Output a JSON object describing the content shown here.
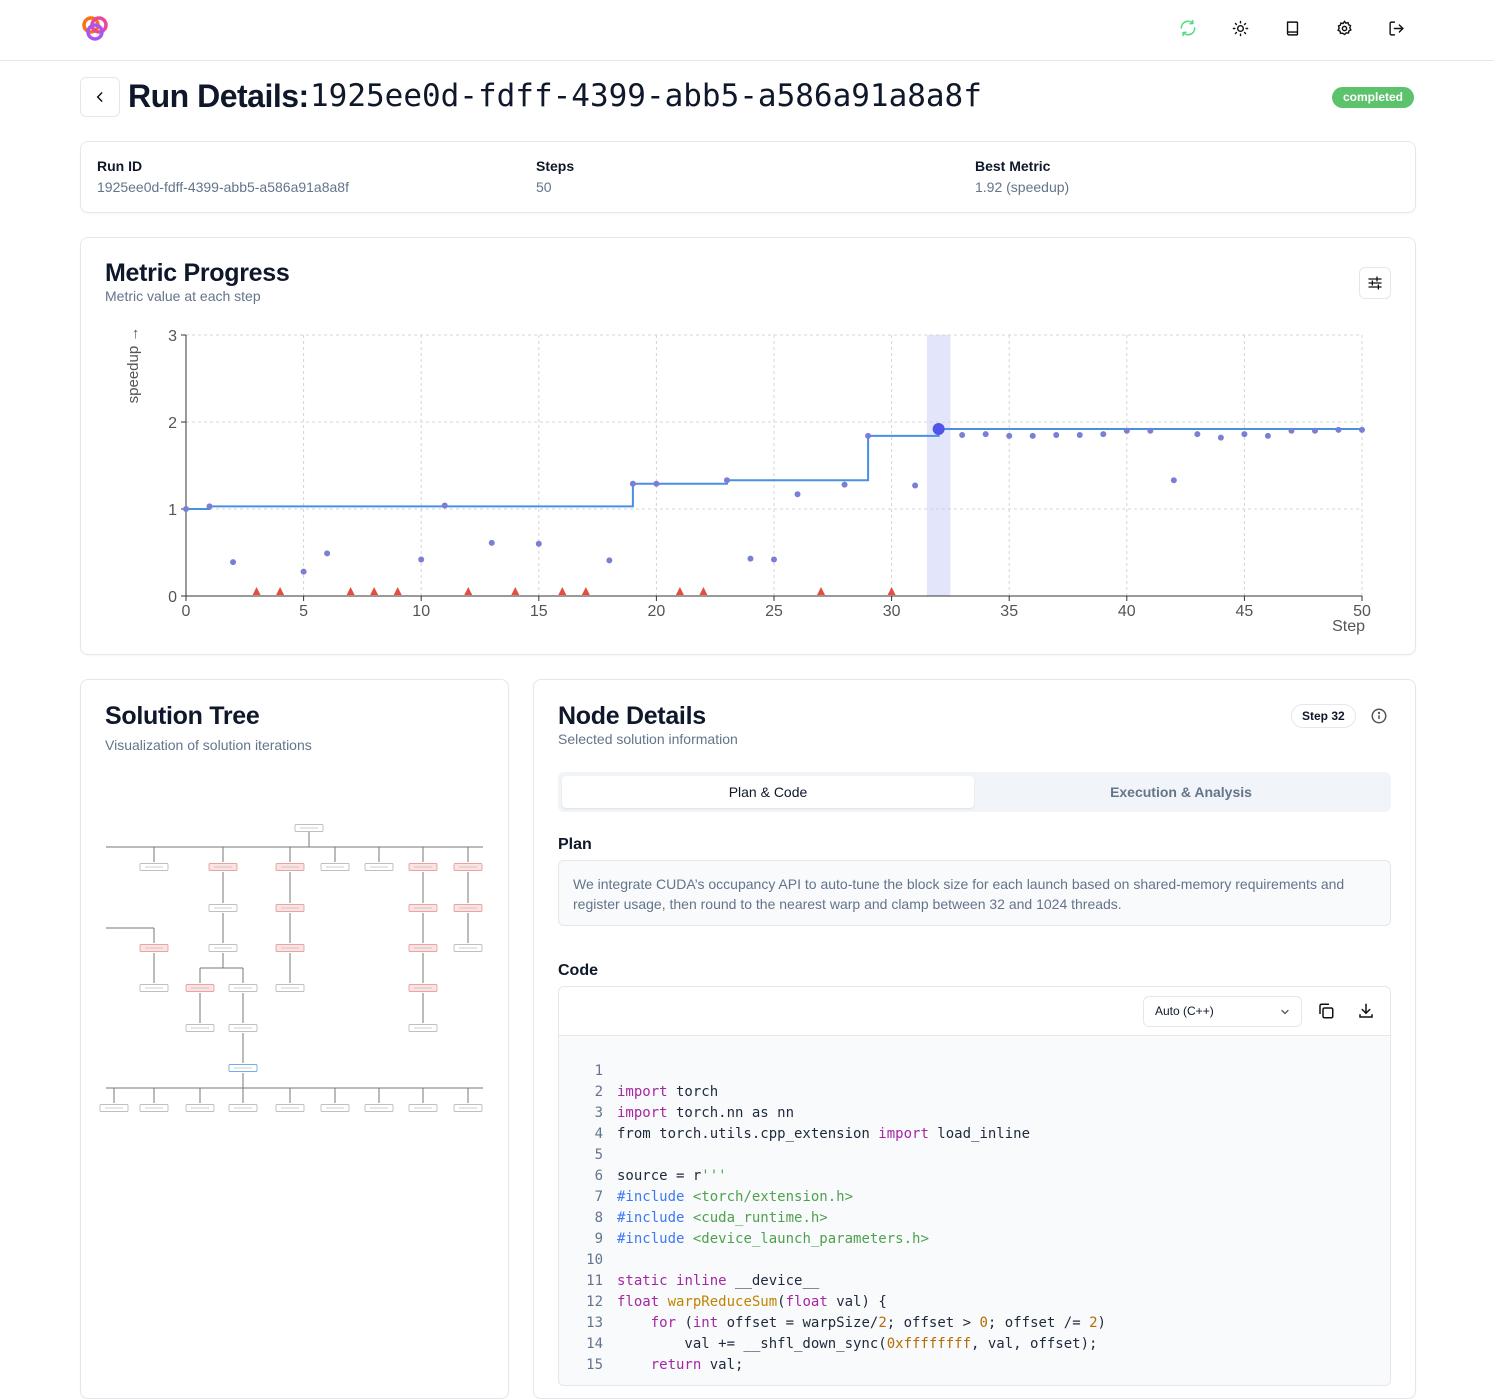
{
  "header": {
    "icons": [
      "logo",
      "refresh-icon",
      "sun-icon",
      "book-icon",
      "gear-icon",
      "logout-icon"
    ],
    "refresh_color": "#4ade80"
  },
  "page": {
    "title": "Run Details:",
    "run_id_title": "1925ee0d-fdff-4399-abb5-a586a91a8a8f",
    "status": "completed",
    "status_color": "#5cc26b"
  },
  "info": {
    "run_id_label": "Run ID",
    "run_id_value": "1925ee0d-fdff-4399-abb5-a586a91a8a8f",
    "steps_label": "Steps",
    "steps_value": "50",
    "best_label": "Best Metric",
    "best_value": "1.92 (speedup)"
  },
  "metric": {
    "title": "Metric Progress",
    "subtitle": "Metric value at each step"
  },
  "chart_data": {
    "type": "scatter",
    "xlabel": "Step",
    "ylabel": "speedup →",
    "xlim": [
      0,
      50
    ],
    "ylim": [
      0,
      3
    ],
    "x_ticks": [
      0,
      5,
      10,
      15,
      20,
      25,
      30,
      35,
      40,
      45,
      50
    ],
    "y_ticks": [
      0,
      1,
      2,
      3
    ],
    "grid": true,
    "selected_step": 32,
    "points": [
      [
        0,
        1.0
      ],
      [
        1,
        1.03
      ],
      [
        2,
        0.39
      ],
      [
        5,
        0.28
      ],
      [
        6,
        0.49
      ],
      [
        10,
        0.42
      ],
      [
        11,
        1.04
      ],
      [
        13,
        0.61
      ],
      [
        15,
        0.6
      ],
      [
        18,
        0.41
      ],
      [
        19,
        1.29
      ],
      [
        20,
        1.29
      ],
      [
        23,
        1.33
      ],
      [
        24,
        0.43
      ],
      [
        25,
        0.42
      ],
      [
        26,
        1.17
      ],
      [
        28,
        1.28
      ],
      [
        29,
        1.84
      ],
      [
        31,
        1.27
      ],
      [
        32,
        1.92
      ],
      [
        33,
        1.85
      ],
      [
        34,
        1.86
      ],
      [
        35,
        1.84
      ],
      [
        36,
        1.84
      ],
      [
        37,
        1.85
      ],
      [
        38,
        1.85
      ],
      [
        39,
        1.86
      ],
      [
        40,
        1.9
      ],
      [
        41,
        1.9
      ],
      [
        42,
        1.33
      ],
      [
        43,
        1.86
      ],
      [
        44,
        1.82
      ],
      [
        45,
        1.86
      ],
      [
        46,
        1.84
      ],
      [
        47,
        1.9
      ],
      [
        48,
        1.9
      ],
      [
        49,
        1.91
      ],
      [
        50,
        1.91
      ]
    ],
    "failed_steps": [
      3,
      4,
      7,
      8,
      9,
      12,
      14,
      16,
      17,
      21,
      22,
      27,
      30
    ],
    "best_line": [
      [
        0,
        1.0
      ],
      [
        1,
        1.03
      ],
      [
        19,
        1.29
      ],
      [
        23,
        1.33
      ],
      [
        29,
        1.84
      ],
      [
        32,
        1.92
      ],
      [
        50,
        1.92
      ]
    ],
    "colors": {
      "line": "#4a90e2",
      "point": "#7b7fd4",
      "failed": "#e74c3c",
      "selected": "#4f55e8",
      "highlight": "#e3e5fb"
    }
  },
  "tree": {
    "title": "Solution Tree",
    "subtitle": "Visualization of solution iterations"
  },
  "node": {
    "title": "Node Details",
    "subtitle": "Selected solution information",
    "step_badge": "Step 32",
    "tab_plan": "Plan & Code",
    "tab_exec": "Execution & Analysis",
    "plan_label": "Plan",
    "plan_text": "We integrate CUDA’s occupancy API to auto-tune the block size for each launch based on shared-memory requirements and register usage, then round to the nearest warp and clamp between 32 and 1024 threads.",
    "code_label": "Code",
    "language": "Auto (C++)",
    "code_lines": [
      "",
      "import torch",
      "import torch.nn as nn",
      "from torch.utils.cpp_extension import load_inline",
      "",
      "source = r'''",
      "#include <torch/extension.h>",
      "#include <cuda_runtime.h>",
      "#include <device_launch_parameters.h>",
      "",
      "static inline __device__",
      "float warpReduceSum(float val) {",
      "    for (int offset = warpSize/2; offset > 0; offset /= 2)",
      "        val += __shfl_down_sync(0xffffffff, val, offset);",
      "    return val;"
    ]
  }
}
